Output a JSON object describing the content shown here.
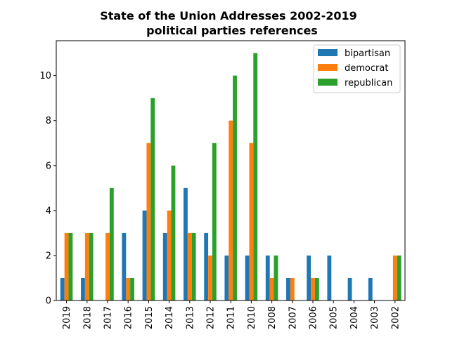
{
  "chart_data": {
    "type": "bar",
    "title": "State of the Union Addresses 2002-2019",
    "subtitle": "political parties references",
    "xlabel": "",
    "ylabel": "",
    "ylim": [
      0,
      11.55
    ],
    "yticks": [
      0,
      2,
      4,
      6,
      8,
      10
    ],
    "categories": [
      "2019",
      "2018",
      "2017",
      "2016",
      "2015",
      "2014",
      "2013",
      "2012",
      "2011",
      "2010",
      "2008",
      "2007",
      "2006",
      "2005",
      "2004",
      "2003",
      "2002"
    ],
    "series": [
      {
        "name": "bipartisan",
        "color": "#1f77b4",
        "values": [
          1,
          1,
          0,
          3,
          4,
          3,
          5,
          3,
          2,
          2,
          2,
          1,
          2,
          2,
          1,
          1,
          0
        ]
      },
      {
        "name": "democrat",
        "color": "#ff7f0e",
        "values": [
          3,
          3,
          3,
          1,
          7,
          4,
          3,
          2,
          8,
          7,
          1,
          1,
          1,
          0,
          0,
          0,
          2
        ]
      },
      {
        "name": "republican",
        "color": "#2ca02c",
        "values": [
          3,
          3,
          5,
          1,
          9,
          6,
          3,
          7,
          10,
          11,
          2,
          0,
          1,
          0,
          0,
          0,
          2
        ]
      }
    ],
    "legend_position": "top-right",
    "grid": false
  }
}
